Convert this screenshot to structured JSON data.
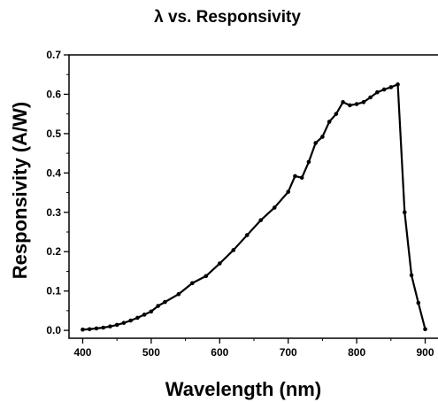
{
  "chart_data": {
    "type": "line",
    "title": "λ vs. Responsivity",
    "xlabel": "Wavelength (nm)",
    "ylabel": "Responsivity (A/W)",
    "xlim": [
      380,
      920
    ],
    "ylim": [
      -0.02,
      0.7
    ],
    "xticks": [
      400,
      500,
      600,
      700,
      800,
      900
    ],
    "xtick_labels": [
      "400",
      "500",
      "600",
      "700",
      "800",
      "900"
    ],
    "yticks": [
      0.0,
      0.1,
      0.2,
      0.3,
      0.4,
      0.5,
      0.6,
      0.7
    ],
    "ytick_labels": [
      "0.0",
      "0.1",
      "0.2",
      "0.3",
      "0.4",
      "0.5",
      "0.6",
      "0.7"
    ],
    "grid": false,
    "legend": "none",
    "series": [
      {
        "color": "#000000",
        "marker": "circle",
        "x": [
          400,
          410,
          420,
          430,
          440,
          450,
          460,
          470,
          480,
          490,
          500,
          510,
          520,
          540,
          560,
          580,
          600,
          620,
          640,
          660,
          680,
          700,
          710,
          720,
          730,
          740,
          750,
          760,
          770,
          780,
          790,
          800,
          810,
          820,
          830,
          840,
          850,
          860,
          870,
          880,
          890,
          900
        ],
        "y": [
          0.002,
          0.003,
          0.005,
          0.007,
          0.01,
          0.014,
          0.019,
          0.025,
          0.032,
          0.04,
          0.048,
          0.062,
          0.072,
          0.092,
          0.12,
          0.138,
          0.17,
          0.204,
          0.242,
          0.28,
          0.312,
          0.352,
          0.392,
          0.388,
          0.428,
          0.476,
          0.492,
          0.53,
          0.55,
          0.58,
          0.572,
          0.575,
          0.58,
          0.592,
          0.605,
          0.612,
          0.618,
          0.625,
          0.3,
          0.14,
          0.07,
          0.003
        ]
      }
    ]
  }
}
